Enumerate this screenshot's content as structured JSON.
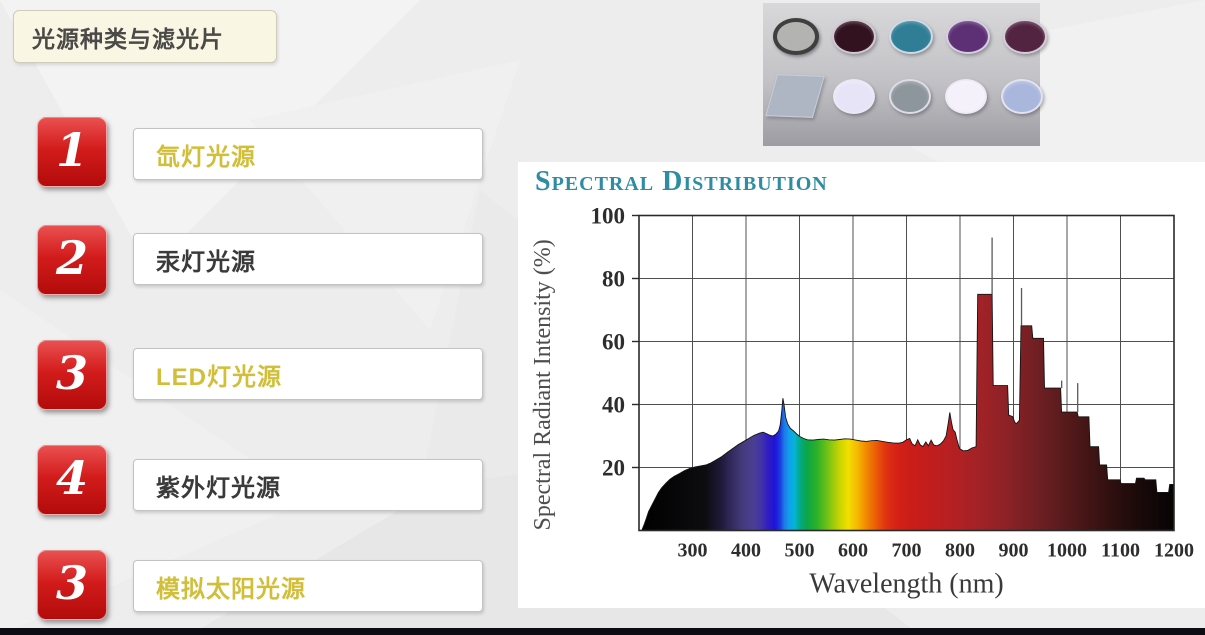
{
  "slide": {
    "title": "光源种类与滤光片",
    "items": [
      {
        "number": "1",
        "label": "氙灯光源",
        "highlight": true
      },
      {
        "number": "2",
        "label": "汞灯光源",
        "highlight": false
      },
      {
        "number": "3",
        "label": "LED灯光源",
        "highlight": true
      },
      {
        "number": "4",
        "label": "紫外灯光源",
        "highlight": false
      },
      {
        "number": "3",
        "label": "模拟太阳光源",
        "highlight": true
      }
    ],
    "badge_color": "#c41414",
    "highlight_yellow": "#d1bf3a",
    "text_dark": "#3a3a3a",
    "item_tops": [
      117,
      225,
      340,
      445,
      550
    ],
    "box_tops": [
      128,
      233,
      348,
      459,
      560
    ]
  },
  "filters_image": {
    "top_row": [
      {
        "name": "filter-gray-lens",
        "color": "#b3b3b1",
        "ringed": true
      },
      {
        "name": "filter-dark-plum",
        "color": "#33121f"
      },
      {
        "name": "filter-teal",
        "color": "#2f7e95"
      },
      {
        "name": "filter-purple",
        "color": "#5d3076"
      },
      {
        "name": "filter-maroon",
        "color": "#522441"
      }
    ],
    "bottom_row": [
      {
        "name": "filter-plate-blue-gray",
        "color": "#aeb6c4",
        "shape": "plate"
      },
      {
        "name": "filter-pale-lavender",
        "color": "#e8e4f8"
      },
      {
        "name": "filter-gray-blue",
        "color": "#8d969d"
      },
      {
        "name": "filter-white",
        "color": "#f4f1fb"
      },
      {
        "name": "filter-periwinkle",
        "color": "#a9b7dd"
      }
    ]
  },
  "chart_data": {
    "type": "area",
    "title": "Spectral Distribution",
    "xlabel": "Wavelength (nm)",
    "ylabel": "Spectral Radiant Intensity (%)",
    "xlim": [
      200,
      1200
    ],
    "ylim": [
      0,
      100
    ],
    "x_ticks": [
      300,
      400,
      500,
      600,
      700,
      800,
      900,
      1000,
      1100,
      1200
    ],
    "y_ticks": [
      20,
      40,
      60,
      80,
      100
    ],
    "x_gridlines": [
      300,
      400,
      500,
      600,
      700,
      800,
      900,
      1000,
      1100
    ],
    "y_gridlines": [
      20,
      40,
      60,
      80
    ],
    "grid": true,
    "title_color": "#2e8da2",
    "points": [
      [
        205,
        0
      ],
      [
        210,
        2
      ],
      [
        214,
        4
      ],
      [
        218,
        6
      ],
      [
        224,
        8
      ],
      [
        230,
        10
      ],
      [
        236,
        12
      ],
      [
        242,
        13.5
      ],
      [
        250,
        15
      ],
      [
        258,
        16.3
      ],
      [
        266,
        17.2
      ],
      [
        275,
        18
      ],
      [
        285,
        19
      ],
      [
        295,
        19.7
      ],
      [
        305,
        20.2
      ],
      [
        315,
        20.5
      ],
      [
        325,
        20.8
      ],
      [
        335,
        21.5
      ],
      [
        345,
        22.5
      ],
      [
        355,
        23.5
      ],
      [
        365,
        24.8
      ],
      [
        375,
        26
      ],
      [
        385,
        27.2
      ],
      [
        395,
        28.2
      ],
      [
        405,
        29.2
      ],
      [
        415,
        30.2
      ],
      [
        425,
        30.9
      ],
      [
        432,
        31.2
      ],
      [
        438,
        30.8
      ],
      [
        444,
        30.3
      ],
      [
        450,
        30
      ],
      [
        456,
        30.6
      ],
      [
        461,
        31.6
      ],
      [
        464,
        33.5
      ],
      [
        467,
        38
      ],
      [
        469,
        42
      ],
      [
        471,
        40
      ],
      [
        474,
        36
      ],
      [
        478,
        33.8
      ],
      [
        483,
        32.4
      ],
      [
        489,
        31.6
      ],
      [
        495,
        30.6
      ],
      [
        501,
        29.8
      ],
      [
        508,
        29.2
      ],
      [
        515,
        28.8
      ],
      [
        525,
        28.7
      ],
      [
        535,
        28.9
      ],
      [
        545,
        29
      ],
      [
        555,
        28.8
      ],
      [
        565,
        28.7
      ],
      [
        575,
        28.9
      ],
      [
        585,
        29.1
      ],
      [
        595,
        29
      ],
      [
        605,
        28.7
      ],
      [
        615,
        28.4
      ],
      [
        625,
        28.3
      ],
      [
        635,
        28.5
      ],
      [
        645,
        28.6
      ],
      [
        655,
        28.3
      ],
      [
        665,
        28
      ],
      [
        675,
        27.8
      ],
      [
        685,
        27.7
      ],
      [
        693,
        28
      ],
      [
        700,
        28.8
      ],
      [
        706,
        29.2
      ],
      [
        710,
        27.6
      ],
      [
        716,
        26.9
      ],
      [
        721,
        28.8
      ],
      [
        726,
        27.1
      ],
      [
        731,
        26.7
      ],
      [
        736,
        28.1
      ],
      [
        741,
        26.9
      ],
      [
        746,
        28.7
      ],
      [
        751,
        27.1
      ],
      [
        757,
        26.9
      ],
      [
        763,
        27.4
      ],
      [
        769,
        28.4
      ],
      [
        774,
        30
      ],
      [
        778,
        34
      ],
      [
        781,
        37.5
      ],
      [
        784,
        34.5
      ],
      [
        787,
        32
      ],
      [
        791,
        31.2
      ],
      [
        794,
        29
      ],
      [
        799,
        26
      ],
      [
        806,
        25.3
      ],
      [
        814,
        25.4
      ],
      [
        822,
        26.2
      ],
      [
        830,
        26.6
      ],
      [
        833,
        75
      ],
      [
        860,
        75
      ],
      [
        862,
        46
      ],
      [
        889,
        46
      ],
      [
        891,
        36.6
      ],
      [
        898,
        36.2
      ],
      [
        903,
        34.2
      ],
      [
        906,
        34
      ],
      [
        911,
        35
      ],
      [
        914,
        65
      ],
      [
        934,
        65
      ],
      [
        936,
        61
      ],
      [
        956,
        61
      ],
      [
        958,
        45.2
      ],
      [
        988,
        45.2
      ],
      [
        990,
        37.6
      ],
      [
        1019,
        37.6
      ],
      [
        1021,
        36.1
      ],
      [
        1041,
        36.1
      ],
      [
        1043,
        26.6
      ],
      [
        1059,
        26.6
      ],
      [
        1061,
        20.8
      ],
      [
        1074,
        20.8
      ],
      [
        1076,
        16.1
      ],
      [
        1099,
        16.1
      ],
      [
        1101,
        14.9
      ],
      [
        1128,
        14.9
      ],
      [
        1130,
        16.6
      ],
      [
        1144,
        16.6
      ],
      [
        1146,
        16.1
      ],
      [
        1166,
        16.1
      ],
      [
        1168,
        12.1
      ],
      [
        1190,
        12.1
      ],
      [
        1192,
        14.6
      ],
      [
        1200,
        14.6
      ]
    ],
    "spikes": [
      [
        860,
        75,
        93
      ],
      [
        915,
        65,
        77
      ],
      [
        990,
        45.2,
        47.6
      ],
      [
        1020,
        37.6,
        46.8
      ]
    ],
    "gradient_stops": [
      [
        200,
        "#000000"
      ],
      [
        320,
        "#0d0d10"
      ],
      [
        350,
        "#1f1a3a"
      ],
      [
        370,
        "#342b5e"
      ],
      [
        390,
        "#443b7c"
      ],
      [
        410,
        "#4a3f92"
      ],
      [
        425,
        "#4232a8"
      ],
      [
        438,
        "#2d1cc4"
      ],
      [
        450,
        "#2012d6"
      ],
      [
        460,
        "#1a3ae0"
      ],
      [
        468,
        "#1e7ae8"
      ],
      [
        477,
        "#0fa0ee"
      ],
      [
        487,
        "#06b4d4"
      ],
      [
        497,
        "#04aa8a"
      ],
      [
        510,
        "#0aa648"
      ],
      [
        530,
        "#2eb128"
      ],
      [
        552,
        "#7cc414"
      ],
      [
        572,
        "#c8d400"
      ],
      [
        588,
        "#f2e000"
      ],
      [
        605,
        "#f6b800"
      ],
      [
        622,
        "#f28800"
      ],
      [
        640,
        "#ea5c08"
      ],
      [
        658,
        "#e03410"
      ],
      [
        678,
        "#d62216"
      ],
      [
        700,
        "#cc1d18"
      ],
      [
        740,
        "#c21d1d"
      ],
      [
        780,
        "#b62022"
      ],
      [
        830,
        "#a32226"
      ],
      [
        880,
        "#8e2226"
      ],
      [
        930,
        "#762024"
      ],
      [
        980,
        "#5e1c1e"
      ],
      [
        1030,
        "#471616"
      ],
      [
        1080,
        "#301010"
      ],
      [
        1130,
        "#1c0a0a"
      ],
      [
        1200,
        "#060404"
      ]
    ],
    "legend": null
  }
}
